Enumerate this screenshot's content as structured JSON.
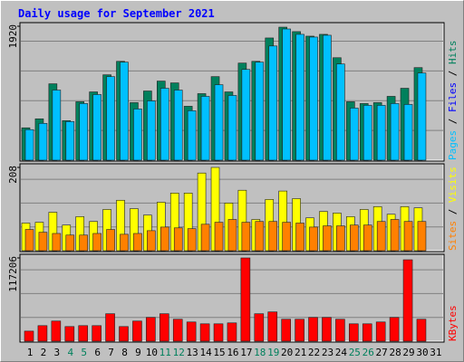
{
  "chart_data": {
    "type": "bar",
    "title": "Daily usage for September 2021",
    "categories": [
      "1",
      "2",
      "3",
      "4",
      "5",
      "6",
      "7",
      "8",
      "9",
      "10",
      "11",
      "12",
      "13",
      "14",
      "15",
      "16",
      "17",
      "18",
      "19",
      "20",
      "21",
      "22",
      "23",
      "24",
      "25",
      "26",
      "27",
      "28",
      "29",
      "30",
      "31"
    ],
    "weekends": [
      "4",
      "5",
      "11",
      "12",
      "18",
      "19",
      "25",
      "26"
    ],
    "weekday_color": "#000000",
    "weekend_color": "#00805c",
    "grid": true,
    "panels": [
      {
        "ylim": [
          0,
          1920
        ],
        "yticks": [
          1920
        ],
        "series": [
          {
            "name": "Hits",
            "color": "#00805c",
            "values": [
              464,
              593,
              1095,
              567,
              838,
              979,
              1224,
              1417,
              825,
              992,
              1134,
              1108,
              773,
              954,
              1198,
              979,
              1392,
              1417,
              1752,
              1907,
              1843,
              1778,
              1804,
              1469,
              838,
              812,
              825,
              915,
              1031,
              1327,
              null
            ]
          },
          {
            "name": "Files",
            "color": "#0000ff",
            "values": [
              330,
              400,
              700,
              410,
              600,
              700,
              880,
              1000,
              540,
              630,
              770,
              700,
              500,
              650,
              770,
              660,
              930,
              1000,
              1160,
              1340,
              1290,
              1260,
              1280,
              980,
              530,
              560,
              560,
              580,
              570,
              890,
              null
            ]
          },
          {
            "name": "Pages",
            "color": "#00c0ff",
            "values": [
              438,
              528,
              1005,
              554,
              812,
              941,
              1198,
              1405,
              734,
              850,
              1031,
              1005,
              709,
              915,
              1082,
              928,
              1301,
              1405,
              1637,
              1881,
              1804,
              1765,
              1791,
              1379,
              747,
              786,
              786,
              812,
              799,
              1250,
              null
            ]
          }
        ]
      },
      {
        "ylim": [
          0,
          208
        ],
        "yticks": [
          208
        ],
        "series": [
          {
            "name": "Visits",
            "color": "#ffff00",
            "values": [
              69,
              71,
              96,
              64,
              85,
              73,
              103,
              126,
              105,
              89,
              121,
              144,
              144,
              194,
              208,
              119,
              151,
              78,
              128,
              149,
              130,
              82,
              98,
              94,
              85,
              103,
              110,
              91,
              110,
              107,
              null
            ]
          },
          {
            "name": "Sites",
            "color": "#ff8000",
            "values": [
              53,
              46,
              43,
              39,
              39,
              43,
              53,
              41,
              43,
              50,
              59,
              57,
              55,
              66,
              71,
              78,
              71,
              73,
              73,
              71,
              69,
              59,
              62,
              62,
              64,
              64,
              73,
              78,
              73,
              73,
              null
            ]
          }
        ]
      },
      {
        "ylim": [
          0,
          117206
        ],
        "yticks": [
          117206
        ],
        "series": [
          {
            "name": "KBytes",
            "color": "#ff0000",
            "values": [
              14168,
              21896,
              28336,
              20608,
              21896,
              21896,
              38640,
              20608,
              28336,
              33487,
              38640,
              30911,
              27047,
              24472,
              24472,
              25760,
              117206,
              38640,
              41215,
              30911,
              30911,
              33487,
              33487,
              30911,
              24472,
              24472,
              27047,
              33487,
              114630,
              30911,
              null
            ]
          }
        ]
      }
    ]
  }
}
